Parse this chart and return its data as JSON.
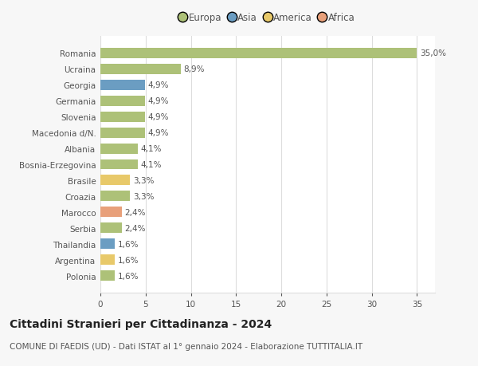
{
  "countries": [
    "Romania",
    "Ucraina",
    "Georgia",
    "Germania",
    "Slovenia",
    "Macedonia d/N.",
    "Albania",
    "Bosnia-Erzegovina",
    "Brasile",
    "Croazia",
    "Marocco",
    "Serbia",
    "Thailandia",
    "Argentina",
    "Polonia"
  ],
  "values": [
    35.0,
    8.9,
    4.9,
    4.9,
    4.9,
    4.9,
    4.1,
    4.1,
    3.3,
    3.3,
    2.4,
    2.4,
    1.6,
    1.6,
    1.6
  ],
  "labels": [
    "35,0%",
    "8,9%",
    "4,9%",
    "4,9%",
    "4,9%",
    "4,9%",
    "4,1%",
    "4,1%",
    "3,3%",
    "3,3%",
    "2,4%",
    "2,4%",
    "1,6%",
    "1,6%",
    "1,6%"
  ],
  "continents": [
    "Europa",
    "Europa",
    "Asia",
    "Europa",
    "Europa",
    "Europa",
    "Europa",
    "Europa",
    "America",
    "Europa",
    "Africa",
    "Europa",
    "Asia",
    "America",
    "Europa"
  ],
  "continent_colors": {
    "Europa": "#adc178",
    "Asia": "#6b9dc2",
    "America": "#e8c96a",
    "Africa": "#e8a07a"
  },
  "legend_order": [
    "Europa",
    "Asia",
    "America",
    "Africa"
  ],
  "bg_color": "#f7f7f7",
  "plot_bg_color": "#ffffff",
  "title": "Cittadini Stranieri per Cittadinanza - 2024",
  "subtitle": "COMUNE DI FAEDIS (UD) - Dati ISTAT al 1° gennaio 2024 - Elaborazione TUTTITALIA.IT",
  "xlim": [
    0,
    37
  ],
  "xticks": [
    0,
    5,
    10,
    15,
    20,
    25,
    30,
    35
  ],
  "grid_color": "#dddddd",
  "bar_height": 0.65,
  "title_fontsize": 10,
  "subtitle_fontsize": 7.5,
  "tick_label_fontsize": 7.5,
  "value_label_fontsize": 7.5,
  "legend_fontsize": 8.5,
  "text_color": "#555555",
  "title_color": "#222222"
}
